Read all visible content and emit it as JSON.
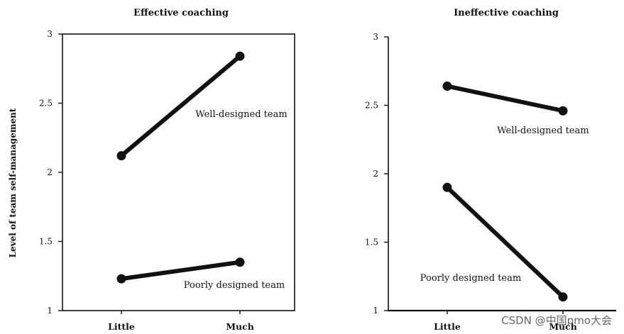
{
  "shared_ylabel": "Level of team self-management",
  "watermark": "CSDN @中国pmo大会",
  "colors": {
    "ink": "#111111"
  },
  "chart_data": [
    {
      "type": "line",
      "title": "Effective coaching",
      "categories": [
        "Little",
        "Much"
      ],
      "ylim": [
        1,
        3
      ],
      "yticks": [
        1,
        1.5,
        2,
        2.5,
        3
      ],
      "ytick_labels": [
        "1",
        "1.5",
        "2",
        "2.5",
        "3"
      ],
      "series": [
        {
          "name": "Well-designed team",
          "values": [
            2.12,
            2.84
          ]
        },
        {
          "name": "Poorly designed team",
          "values": [
            1.23,
            1.35
          ]
        }
      ]
    },
    {
      "type": "line",
      "title": "Ineffective coaching",
      "categories": [
        "Little",
        "Much"
      ],
      "ylim": [
        1,
        3
      ],
      "yticks": [
        1,
        1.5,
        2,
        2.5,
        3
      ],
      "ytick_labels": [
        "1",
        "1.5",
        "2",
        "2.5",
        "3"
      ],
      "series": [
        {
          "name": "Well-designed team",
          "values": [
            2.64,
            2.46
          ]
        },
        {
          "name": "Poorly designed team",
          "values": [
            1.9,
            1.1
          ]
        }
      ]
    }
  ]
}
